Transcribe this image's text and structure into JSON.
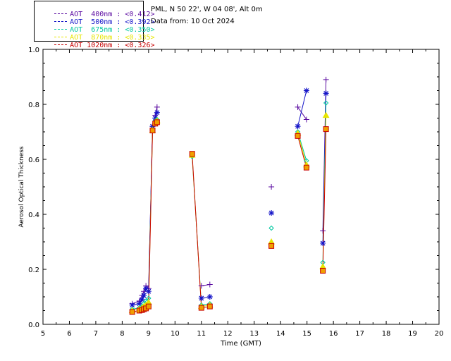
{
  "header": {
    "site": "PML, N 50 22', W 04 08', Alt 0m",
    "date_line": "Data from: 10 Oct 2024"
  },
  "legend": [
    {
      "label": "AOT  400nm : <0.412>",
      "color": "#5a0aa0"
    },
    {
      "label": "AOT  500nm : <0.392>",
      "color": "#1414c8"
    },
    {
      "label": "AOT  675nm : <0.350>",
      "color": "#00c8a0"
    },
    {
      "label": "AOT  870nm : <0.335>",
      "color": "#e6e600"
    },
    {
      "label": "AOT 1020nm : <0.326>",
      "color": "#c80000"
    }
  ],
  "chart_data": {
    "type": "scatter",
    "xlabel": "Time (GMT)",
    "ylabel": "Aerosol Optical Thickness",
    "xlim": [
      5,
      20
    ],
    "ylim": [
      0.0,
      1.0
    ],
    "x_ticks": [
      "5",
      "6",
      "7",
      "8",
      "9",
      "10",
      "11",
      "12",
      "13",
      "14",
      "15",
      "16",
      "17",
      "18",
      "19",
      "20"
    ],
    "y_ticks": [
      "0.0",
      "0.2",
      "0.4",
      "0.6",
      "0.8",
      "1.0"
    ],
    "series": [
      {
        "name": "AOT  400nm",
        "marker": "plus",
        "color": "#5a0aa0",
        "points": [
          [
            8.38,
            0.075
          ],
          [
            8.65,
            0.085
          ],
          [
            8.75,
            0.105
          ],
          [
            8.82,
            0.12
          ],
          [
            8.9,
            0.14
          ],
          [
            9.0,
            0.13
          ],
          [
            9.15,
            0.72
          ],
          [
            9.25,
            0.76
          ],
          [
            9.32,
            0.79
          ],
          [
            11.0,
            0.14
          ],
          [
            11.32,
            0.145
          ],
          [
            13.65,
            0.5
          ],
          [
            14.65,
            0.79
          ],
          [
            14.98,
            0.745
          ],
          [
            15.6,
            0.34
          ],
          [
            15.72,
            0.89
          ]
        ]
      },
      {
        "name": "AOT  500nm",
        "marker": "star",
        "color": "#1414c8",
        "points": [
          [
            8.38,
            0.07
          ],
          [
            8.65,
            0.075
          ],
          [
            8.75,
            0.09
          ],
          [
            8.82,
            0.105
          ],
          [
            8.9,
            0.13
          ],
          [
            9.0,
            0.12
          ],
          [
            9.15,
            0.72
          ],
          [
            9.25,
            0.75
          ],
          [
            9.32,
            0.77
          ],
          [
            11.0,
            0.095
          ],
          [
            11.32,
            0.1
          ],
          [
            13.65,
            0.405
          ],
          [
            14.65,
            0.72
          ],
          [
            14.98,
            0.85
          ],
          [
            15.6,
            0.295
          ],
          [
            15.72,
            0.84
          ]
        ]
      },
      {
        "name": "AOT  675nm",
        "marker": "diamond",
        "color": "#00c8a0",
        "points": [
          [
            8.38,
            0.055
          ],
          [
            8.65,
            0.06
          ],
          [
            8.75,
            0.065
          ],
          [
            8.82,
            0.075
          ],
          [
            8.9,
            0.085
          ],
          [
            9.0,
            0.095
          ],
          [
            9.15,
            0.71
          ],
          [
            9.25,
            0.74
          ],
          [
            9.32,
            0.745
          ],
          [
            10.65,
            0.61
          ],
          [
            11.0,
            0.07
          ],
          [
            11.32,
            0.075
          ],
          [
            13.65,
            0.35
          ],
          [
            14.65,
            0.7
          ],
          [
            14.98,
            0.595
          ],
          [
            15.6,
            0.225
          ],
          [
            15.72,
            0.805
          ]
        ]
      },
      {
        "name": "AOT  870nm",
        "marker": "triangle",
        "color": "#e6e600",
        "points": [
          [
            8.38,
            0.05
          ],
          [
            8.65,
            0.055
          ],
          [
            8.75,
            0.06
          ],
          [
            8.82,
            0.065
          ],
          [
            8.9,
            0.07
          ],
          [
            9.0,
            0.08
          ],
          [
            9.15,
            0.705
          ],
          [
            9.25,
            0.735
          ],
          [
            9.32,
            0.74
          ],
          [
            10.65,
            0.615
          ],
          [
            11.0,
            0.065
          ],
          [
            11.32,
            0.07
          ],
          [
            13.65,
            0.3
          ],
          [
            14.65,
            0.695
          ],
          [
            14.98,
            0.58
          ],
          [
            15.6,
            0.21
          ],
          [
            15.72,
            0.76
          ]
        ]
      },
      {
        "name": "AOT 1020nm",
        "marker": "square",
        "color": "#c80000",
        "points": [
          [
            8.38,
            0.045
          ],
          [
            8.65,
            0.05
          ],
          [
            8.75,
            0.052
          ],
          [
            8.82,
            0.055
          ],
          [
            8.9,
            0.058
          ],
          [
            9.0,
            0.065
          ],
          [
            9.15,
            0.705
          ],
          [
            9.25,
            0.73
          ],
          [
            9.32,
            0.735
          ],
          [
            10.65,
            0.62
          ],
          [
            11.0,
            0.06
          ],
          [
            11.32,
            0.065
          ],
          [
            13.65,
            0.285
          ],
          [
            14.65,
            0.685
          ],
          [
            14.98,
            0.57
          ],
          [
            15.6,
            0.195
          ],
          [
            15.72,
            0.71
          ]
        ]
      }
    ]
  }
}
